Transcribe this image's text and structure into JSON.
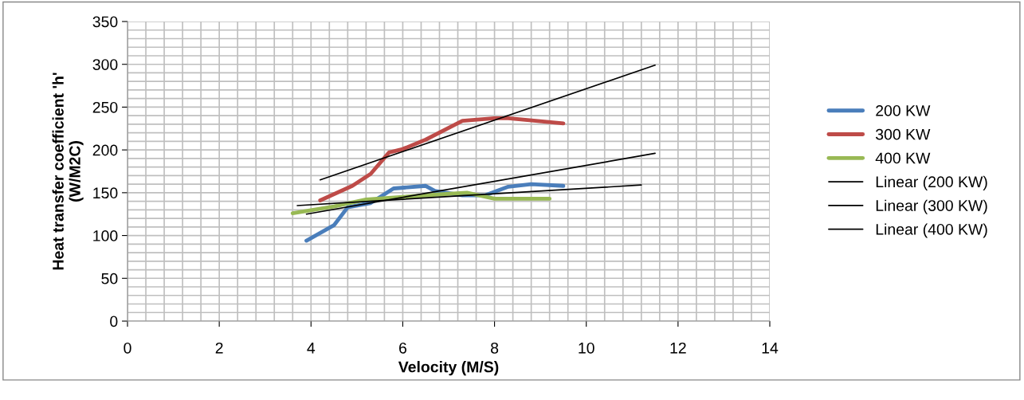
{
  "chart_data": {
    "type": "line",
    "xlabel": "Velocity (M/S)",
    "ylabel": "Heat transfer coefficient 'h'\n(W/M2C)",
    "xlim": [
      0,
      14
    ],
    "xticks": [
      0,
      2,
      4,
      6,
      8,
      10,
      12,
      14
    ],
    "ylim": [
      0,
      350
    ],
    "yticks": [
      0,
      50,
      100,
      150,
      200,
      250,
      300,
      350
    ],
    "grid": true,
    "legend": "right",
    "marker": "none",
    "line_style": "solid",
    "series": [
      {
        "name": "200 KW",
        "color": "#4a7ebb",
        "x": [
          3.9,
          4.5,
          4.8,
          5.3,
          5.8,
          6.5,
          6.7,
          7.3,
          7.8,
          8.3,
          8.8,
          9.5
        ],
        "values": [
          94,
          112,
          133,
          138,
          155,
          158,
          152,
          147,
          147,
          157,
          160,
          158
        ]
      },
      {
        "name": "300 KW",
        "color": "#be4b48",
        "x": [
          4.2,
          4.9,
          5.3,
          5.7,
          6.0,
          6.5,
          7.3,
          8.0,
          8.3,
          9.5
        ],
        "values": [
          141,
          158,
          172,
          197,
          201,
          212,
          234,
          237,
          237,
          231
        ]
      },
      {
        "name": "400 KW",
        "color": "#98b954",
        "x": [
          3.6,
          4.5,
          5.2,
          6.0,
          6.8,
          7.4,
          8.0,
          9.2
        ],
        "values": [
          126,
          134,
          142,
          145,
          148,
          150,
          143,
          143
        ]
      },
      {
        "name": "Linear (200 KW)",
        "color": "#000000",
        "x": [
          3.9,
          11.5
        ],
        "values": [
          125,
          196
        ]
      },
      {
        "name": "Linear (300 KW)",
        "color": "#000000",
        "x": [
          4.2,
          11.5
        ],
        "values": [
          165,
          299
        ]
      },
      {
        "name": "Linear (400 KW)",
        "color": "#000000",
        "x": [
          3.7,
          11.2
        ],
        "values": [
          135,
          159
        ]
      }
    ]
  }
}
